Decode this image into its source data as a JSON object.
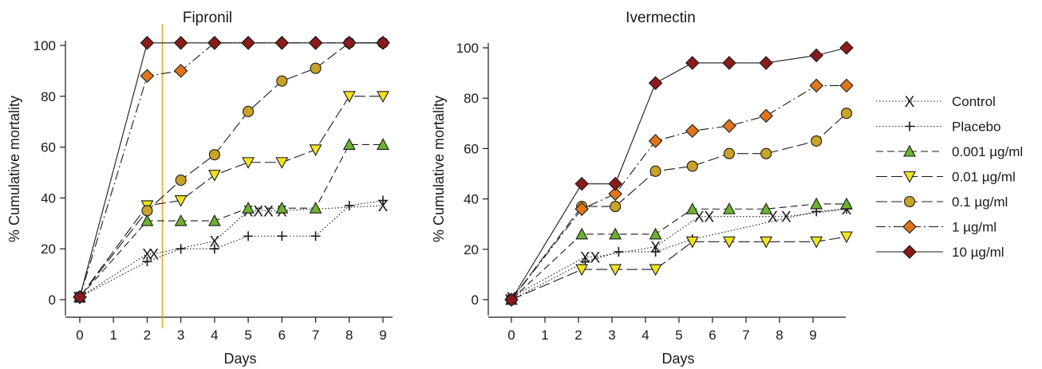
{
  "chart_data": [
    {
      "type": "line",
      "title": "Fipronil",
      "xlabel": "Days",
      "ylabel": "% Cumulative mortality",
      "xlim": [
        -0.5,
        9.5
      ],
      "ylim": [
        0,
        100
      ],
      "xticks": [
        "0",
        "1",
        "2",
        "3",
        "4",
        "5",
        "6",
        "7",
        "8",
        "9"
      ],
      "yticks": [
        "0",
        "20",
        "40",
        "60",
        "80",
        "100"
      ],
      "grid": false,
      "annotations": [
        {
          "type": "vertical-line",
          "x": 2.45,
          "color": "#e8a317"
        }
      ],
      "series": [
        {
          "name": "Control",
          "marker": "x",
          "line": "dotted",
          "color": "#1a1a1a",
          "x": [
            0,
            2,
            2.2,
            4,
            5,
            5.3,
            5.6,
            6,
            9
          ],
          "y": [
            1,
            18,
            18,
            23,
            35,
            35,
            35,
            35,
            37
          ]
        },
        {
          "name": "Placebo",
          "marker": "plus",
          "line": "dotted",
          "color": "#1a1a1a",
          "x": [
            0,
            2,
            3,
            4,
            5,
            6,
            7,
            8,
            9
          ],
          "y": [
            1,
            15,
            20,
            20,
            25,
            25,
            25,
            37,
            39
          ]
        },
        {
          "name": "0.001 µg/ml",
          "marker": "triangle-up",
          "line": "dashed",
          "color": "#6bb32e",
          "x": [
            0,
            2,
            3,
            4,
            5,
            6,
            7,
            8,
            9
          ],
          "y": [
            1,
            31,
            31,
            31,
            36,
            36,
            36,
            61,
            61
          ]
        },
        {
          "name": "0.01 µg/ml",
          "marker": "triangle-down",
          "line": "longdash",
          "color": "#f2e41c",
          "x": [
            0,
            2,
            3,
            4,
            5,
            6,
            7,
            8,
            9
          ],
          "y": [
            1,
            37,
            39,
            49,
            54,
            54,
            59,
            80,
            80
          ]
        },
        {
          "name": "0.1 µg/ml",
          "marker": "circle",
          "line": "longdash",
          "color": "#c9a227",
          "x": [
            0,
            2,
            3,
            4,
            5,
            6,
            7,
            8,
            9
          ],
          "y": [
            1,
            35,
            47,
            57,
            74,
            86,
            91,
            101,
            101
          ]
        },
        {
          "name": "1 µg/ml",
          "marker": "diamond",
          "line": "dashdot",
          "color": "#e0761b",
          "x": [
            0,
            2,
            3,
            4,
            5,
            6,
            7,
            8,
            9
          ],
          "y": [
            1,
            88,
            90,
            101,
            101,
            101,
            101,
            101,
            101
          ]
        },
        {
          "name": "10 µg/ml",
          "marker": "diamond",
          "line": "solid",
          "color": "#8b1a1a",
          "x": [
            0,
            2,
            3,
            4,
            5,
            6,
            7,
            8,
            9
          ],
          "y": [
            1,
            101,
            101,
            101,
            101,
            101,
            101,
            101,
            101
          ]
        }
      ]
    },
    {
      "type": "line",
      "title": "Ivermectin",
      "xlabel": "Days",
      "ylabel": "% Cumulative mortality",
      "xlim": [
        -0.5,
        10.5
      ],
      "ylim": [
        0,
        100
      ],
      "xticks": [
        "0",
        "1",
        "2",
        "3",
        "4",
        "5",
        "6",
        "7",
        "8",
        "9"
      ],
      "yticks": [
        "0",
        "20",
        "40",
        "60",
        "80",
        "100"
      ],
      "grid": false,
      "series": [
        {
          "name": "Control",
          "marker": "x",
          "line": "dotted",
          "color": "#1a1a1a",
          "x": [
            0,
            2.2,
            2.5,
            4.3,
            5.6,
            5.9,
            7.8,
            8.2,
            10
          ],
          "y": [
            1,
            17,
            17,
            21,
            33,
            33,
            33,
            33,
            36
          ]
        },
        {
          "name": "Placebo",
          "marker": "plus",
          "line": "dotted",
          "color": "#1a1a1a",
          "x": [
            0,
            2.2,
            3.2,
            4.3,
            5.4,
            9.1,
            10
          ],
          "y": [
            0,
            15,
            19,
            19,
            24,
            35,
            36
          ]
        },
        {
          "name": "0.001 µg/ml",
          "marker": "triangle-up",
          "line": "dashed",
          "color": "#6bb32e",
          "x": [
            0,
            2.1,
            3.1,
            4.3,
            5.4,
            6.5,
            7.6,
            9.1,
            10
          ],
          "y": [
            0,
            26,
            26,
            26,
            36,
            36,
            36,
            38,
            38
          ]
        },
        {
          "name": "0.01 µg/ml",
          "marker": "triangle-down",
          "line": "longdash",
          "color": "#f2e41c",
          "x": [
            0,
            2.1,
            3.1,
            4.3,
            5.4,
            6.5,
            7.6,
            9.1,
            10
          ],
          "y": [
            0,
            12,
            12,
            12,
            23,
            23,
            23,
            23,
            25
          ]
        },
        {
          "name": "0.1 µg/ml",
          "marker": "circle",
          "line": "longdash",
          "color": "#c9a227",
          "x": [
            0,
            2.1,
            3.1,
            4.3,
            5.4,
            6.5,
            7.6,
            9.1,
            10
          ],
          "y": [
            0,
            37,
            37,
            51,
            53,
            58,
            58,
            63,
            74
          ]
        },
        {
          "name": "1 µg/ml",
          "marker": "diamond",
          "line": "dashdot",
          "color": "#e0761b",
          "x": [
            0,
            2.1,
            3.1,
            4.3,
            5.4,
            6.5,
            7.6,
            9.1,
            10
          ],
          "y": [
            0,
            36,
            42,
            63,
            67,
            69,
            73,
            85,
            85
          ]
        },
        {
          "name": "10 µg/ml",
          "marker": "diamond",
          "line": "solid",
          "color": "#8b1a1a",
          "x": [
            0,
            2.1,
            3.1,
            4.3,
            5.4,
            6.5,
            7.6,
            9.1,
            10
          ],
          "y": [
            0,
            46,
            46,
            86,
            94,
            94,
            94,
            97,
            100
          ]
        }
      ]
    }
  ],
  "legend": {
    "placement": "right",
    "entries": [
      {
        "label": "Control",
        "marker": "x",
        "line": "dotted",
        "color": "#1a1a1a"
      },
      {
        "label": "Placebo",
        "marker": "plus",
        "line": "dotted",
        "color": "#1a1a1a"
      },
      {
        "label": "0.001 µg/ml",
        "marker": "triangle-up",
        "line": "dashed",
        "color": "#6bb32e"
      },
      {
        "label": "0.01 µg/ml",
        "marker": "triangle-down",
        "line": "longdash",
        "color": "#f2e41c"
      },
      {
        "label": "0.1 µg/ml",
        "marker": "circle",
        "line": "longdash",
        "color": "#c9a227"
      },
      {
        "label": "1 µg/ml",
        "marker": "diamond",
        "line": "dashdot",
        "color": "#e0761b"
      },
      {
        "label": "10 µg/ml",
        "marker": "diamond",
        "line": "solid",
        "color": "#8b1a1a"
      }
    ]
  }
}
